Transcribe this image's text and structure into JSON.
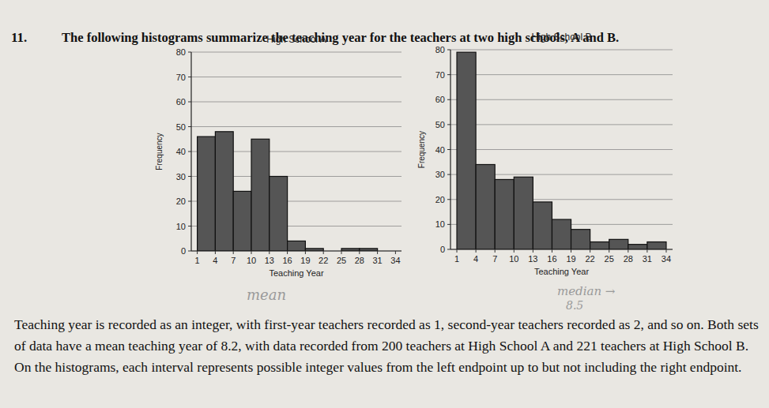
{
  "question": {
    "number": "11.",
    "prompt": "The following histograms summarize the teaching year for the teachers at two high schools, A and B.",
    "body": "Teaching year is recorded as an integer, with first-year teachers recorded as 1, second-year teachers recorded as 2, and so on. Both sets of data have a mean teaching year of 8.2, with data recorded from 200 teachers at High School A and 221 teachers at High School B. On the histograms, each interval represents possible integer values from the left endpoint up to but not including the right endpoint."
  },
  "handwritten_notes": [
    "mean",
    "median →",
    "8.5"
  ],
  "chart_data": [
    {
      "type": "histogram",
      "title": "High School A",
      "x_label": "Teaching Year",
      "y_label": "Frequency",
      "bins": [
        1,
        4,
        7,
        10,
        13,
        16,
        19,
        22,
        25,
        28,
        31,
        34
      ],
      "values": [
        46,
        48,
        24,
        45,
        30,
        4,
        1,
        0,
        1,
        1,
        0
      ],
      "color": "#555555",
      "xlim": [
        0,
        35
      ],
      "ylim": [
        0,
        80
      ],
      "xticks": [
        1,
        4,
        7,
        10,
        13,
        16,
        19,
        22,
        25,
        28,
        31,
        34
      ],
      "yticks": [
        0,
        10,
        20,
        30,
        40,
        50,
        60,
        70,
        80
      ],
      "grid": true
    },
    {
      "type": "histogram",
      "title": "High School B",
      "x_label": "Teaching Year",
      "y_label": "Frequency",
      "bins": [
        1,
        4,
        7,
        10,
        13,
        16,
        19,
        22,
        25,
        28,
        31,
        34
      ],
      "values": [
        79,
        34,
        28,
        29,
        19,
        12,
        8,
        3,
        4,
        2,
        3
      ],
      "color": "#555555",
      "xlim": [
        0,
        35
      ],
      "ylim": [
        0,
        80
      ],
      "xticks": [
        1,
        4,
        7,
        10,
        13,
        16,
        19,
        22,
        25,
        28,
        31,
        34
      ],
      "yticks": [
        0,
        10,
        20,
        30,
        40,
        50,
        60,
        70,
        80
      ],
      "grid": true
    }
  ]
}
